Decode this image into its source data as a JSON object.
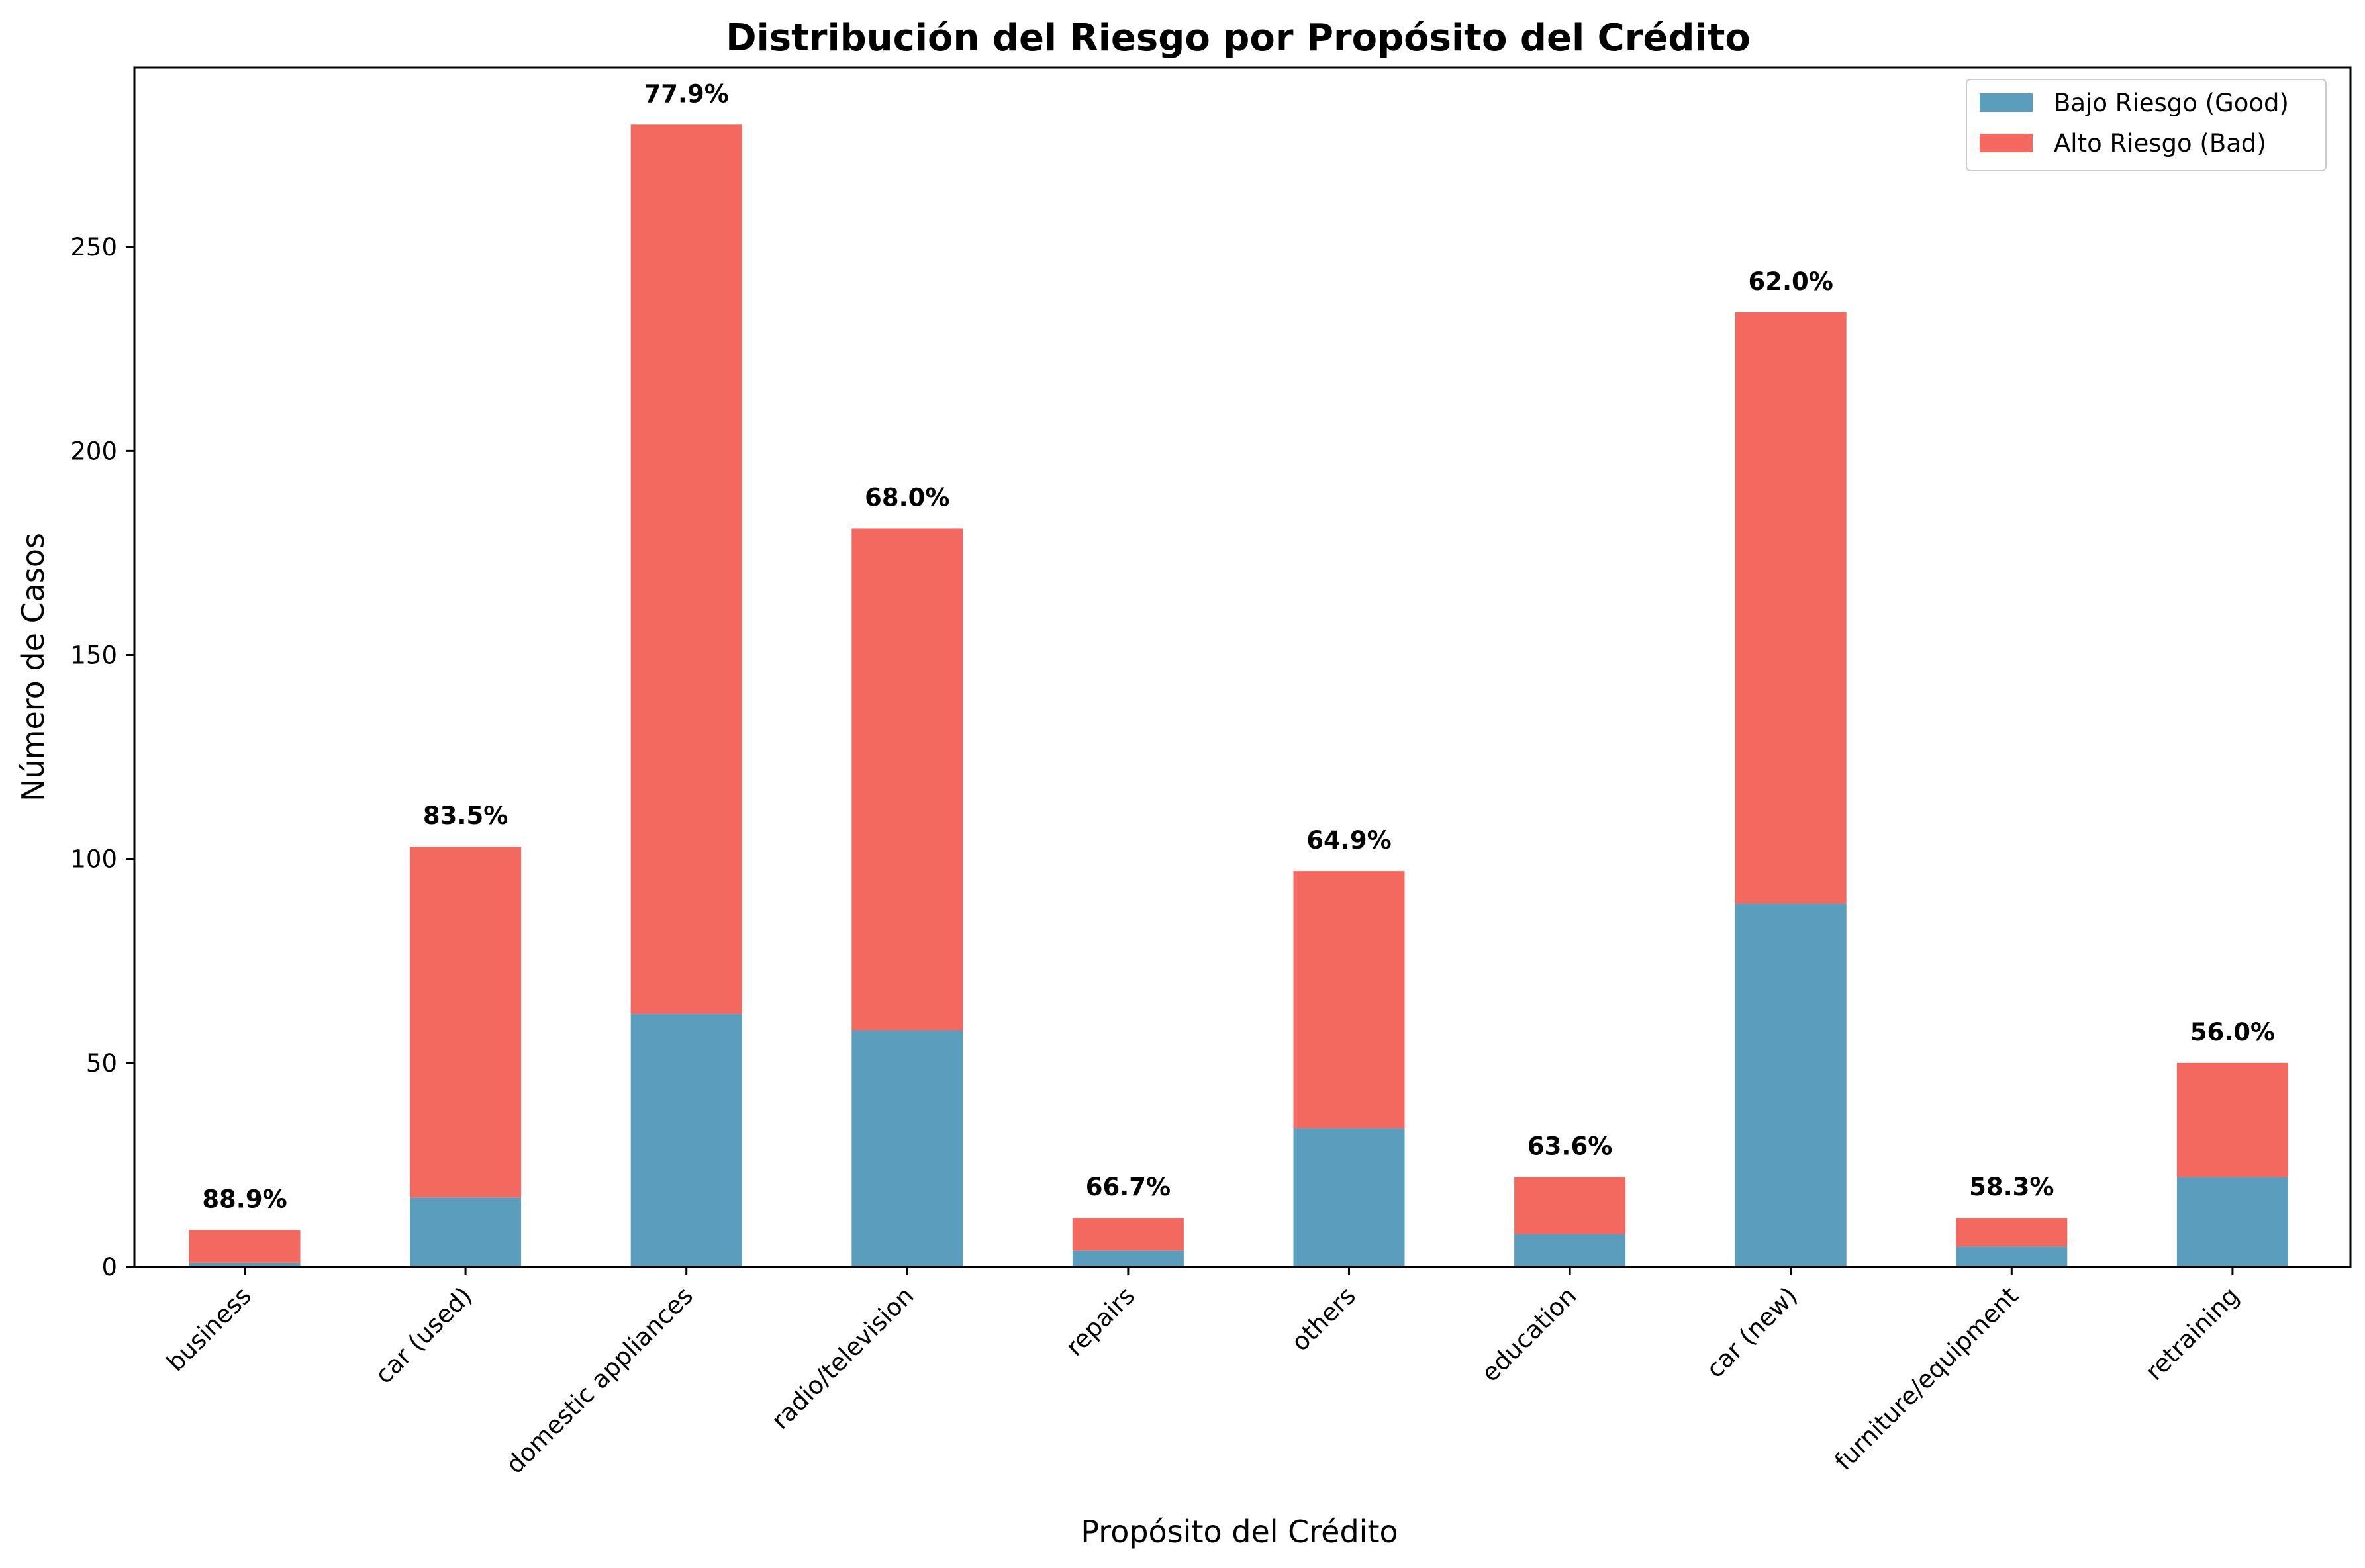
{
  "chart_data": {
    "type": "bar",
    "stacked": true,
    "title": "Distribución del Riesgo por Propósito del Crédito",
    "xlabel": "Propósito del Crédito",
    "ylabel": "Número de Casos",
    "ylim": [
      0,
      294
    ],
    "yticks": [
      0,
      50,
      100,
      150,
      200,
      250
    ],
    "grid": false,
    "legend_position": "top-right",
    "categories": [
      "business",
      "car (used)",
      "domestic appliances",
      "radio/television",
      "repairs",
      "others",
      "education",
      "car (new)",
      "furniture/equipment",
      "retraining"
    ],
    "series": [
      {
        "name": "Bajo Riesgo (Good)",
        "color": "#5a9dbc",
        "values": [
          1,
          17,
          62,
          58,
          4,
          34,
          8,
          89,
          5,
          22
        ]
      },
      {
        "name": "Alto Riesgo (Bad)",
        "color": "#f4695f",
        "values": [
          8,
          86,
          218,
          123,
          8,
          63,
          14,
          145,
          7,
          28
        ]
      }
    ],
    "data_labels": [
      "88.9%",
      "83.5%",
      "77.9%",
      "68.0%",
      "66.7%",
      "64.9%",
      "63.6%",
      "62.0%",
      "58.3%",
      "56.0%"
    ]
  }
}
